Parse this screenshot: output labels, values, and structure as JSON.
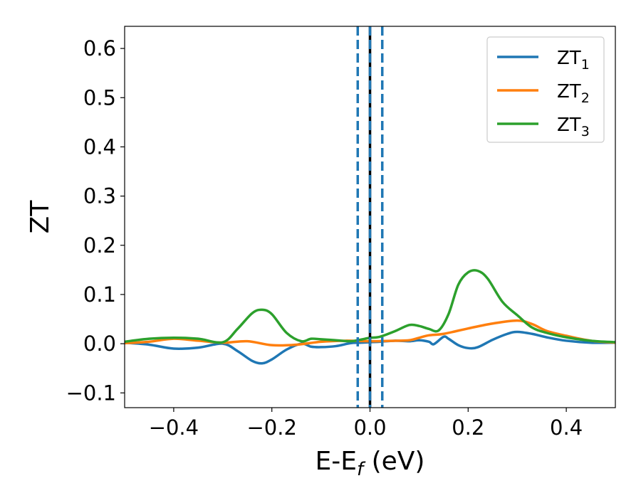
{
  "chart_data": {
    "type": "line",
    "xlabel_base": "E-E",
    "xlabel_sub": "f",
    "xlabel_unit": " (eV)",
    "ylabel": "ZT",
    "xlim": [
      -0.5,
      0.5
    ],
    "ylim": [
      -0.13,
      0.645
    ],
    "xticks": [
      -0.4,
      -0.2,
      0.0,
      0.2,
      0.4
    ],
    "xtick_labels": [
      "−0.4",
      "−0.2",
      "0.0",
      "0.2",
      "0.4"
    ],
    "yticks": [
      -0.1,
      0.0,
      0.1,
      0.2,
      0.3,
      0.4,
      0.5,
      0.6
    ],
    "ytick_labels": [
      "−0.1",
      "0.0",
      "0.1",
      "0.2",
      "0.3",
      "0.4",
      "0.5",
      "0.6"
    ],
    "grid": false,
    "legend_position": "top-right",
    "vlines": [
      {
        "x": -0.025,
        "style": "dashed",
        "color": "#1f77b4"
      },
      {
        "x": 0.025,
        "style": "dashed",
        "color": "#1f77b4"
      },
      {
        "x": 0.0,
        "style": "solid",
        "color": "#000000"
      },
      {
        "x": 0.0,
        "style": "dashed",
        "color": "#1f77b4"
      }
    ],
    "series": [
      {
        "name": "ZT",
        "sub": "1",
        "color": "#1f77b4",
        "x": [
          -0.5,
          -0.45,
          -0.4,
          -0.35,
          -0.3,
          -0.27,
          -0.24,
          -0.22,
          -0.2,
          -0.17,
          -0.14,
          -0.12,
          -0.1,
          -0.07,
          -0.04,
          -0.02,
          0.0,
          0.02,
          0.05,
          0.08,
          0.1,
          0.12,
          0.13,
          0.15,
          0.16,
          0.18,
          0.2,
          0.22,
          0.25,
          0.28,
          0.3,
          0.33,
          0.36,
          0.4,
          0.45,
          0.5
        ],
        "y": [
          0.002,
          -0.002,
          -0.01,
          -0.008,
          0.0,
          -0.015,
          -0.035,
          -0.04,
          -0.032,
          -0.012,
          0.0,
          -0.006,
          -0.007,
          -0.005,
          0.001,
          0.002,
          0.003,
          0.004,
          0.006,
          0.005,
          0.007,
          0.004,
          -0.001,
          0.014,
          0.01,
          -0.003,
          -0.009,
          -0.007,
          0.008,
          0.02,
          0.024,
          0.02,
          0.013,
          0.006,
          0.002,
          0.002
        ]
      },
      {
        "name": "ZT",
        "sub": "2",
        "color": "#ff7f0e",
        "x": [
          -0.5,
          -0.45,
          -0.4,
          -0.35,
          -0.3,
          -0.25,
          -0.2,
          -0.15,
          -0.1,
          -0.05,
          0.0,
          0.05,
          0.08,
          0.1,
          0.12,
          0.15,
          0.2,
          0.25,
          0.3,
          0.33,
          0.36,
          0.4,
          0.45,
          0.5
        ],
        "y": [
          0.001,
          0.004,
          0.01,
          0.006,
          0.002,
          0.005,
          -0.003,
          -0.002,
          0.004,
          0.006,
          0.005,
          0.006,
          0.007,
          0.012,
          0.017,
          0.02,
          0.031,
          0.041,
          0.047,
          0.04,
          0.026,
          0.016,
          0.006,
          0.002
        ]
      },
      {
        "name": "ZT",
        "sub": "3",
        "color": "#2ca02c",
        "x": [
          -0.5,
          -0.45,
          -0.4,
          -0.35,
          -0.3,
          -0.27,
          -0.24,
          -0.22,
          -0.2,
          -0.17,
          -0.14,
          -0.12,
          -0.1,
          -0.07,
          -0.04,
          -0.02,
          0.0,
          0.02,
          0.05,
          0.08,
          0.1,
          0.12,
          0.14,
          0.16,
          0.18,
          0.2,
          0.22,
          0.24,
          0.27,
          0.3,
          0.33,
          0.36,
          0.4,
          0.45,
          0.5
        ],
        "y": [
          0.004,
          0.01,
          0.012,
          0.01,
          0.003,
          0.03,
          0.062,
          0.069,
          0.06,
          0.022,
          0.005,
          0.01,
          0.009,
          0.007,
          0.005,
          0.008,
          0.012,
          0.014,
          0.025,
          0.038,
          0.036,
          0.03,
          0.027,
          0.06,
          0.12,
          0.145,
          0.148,
          0.132,
          0.085,
          0.058,
          0.033,
          0.022,
          0.013,
          0.006,
          0.003
        ]
      }
    ]
  }
}
